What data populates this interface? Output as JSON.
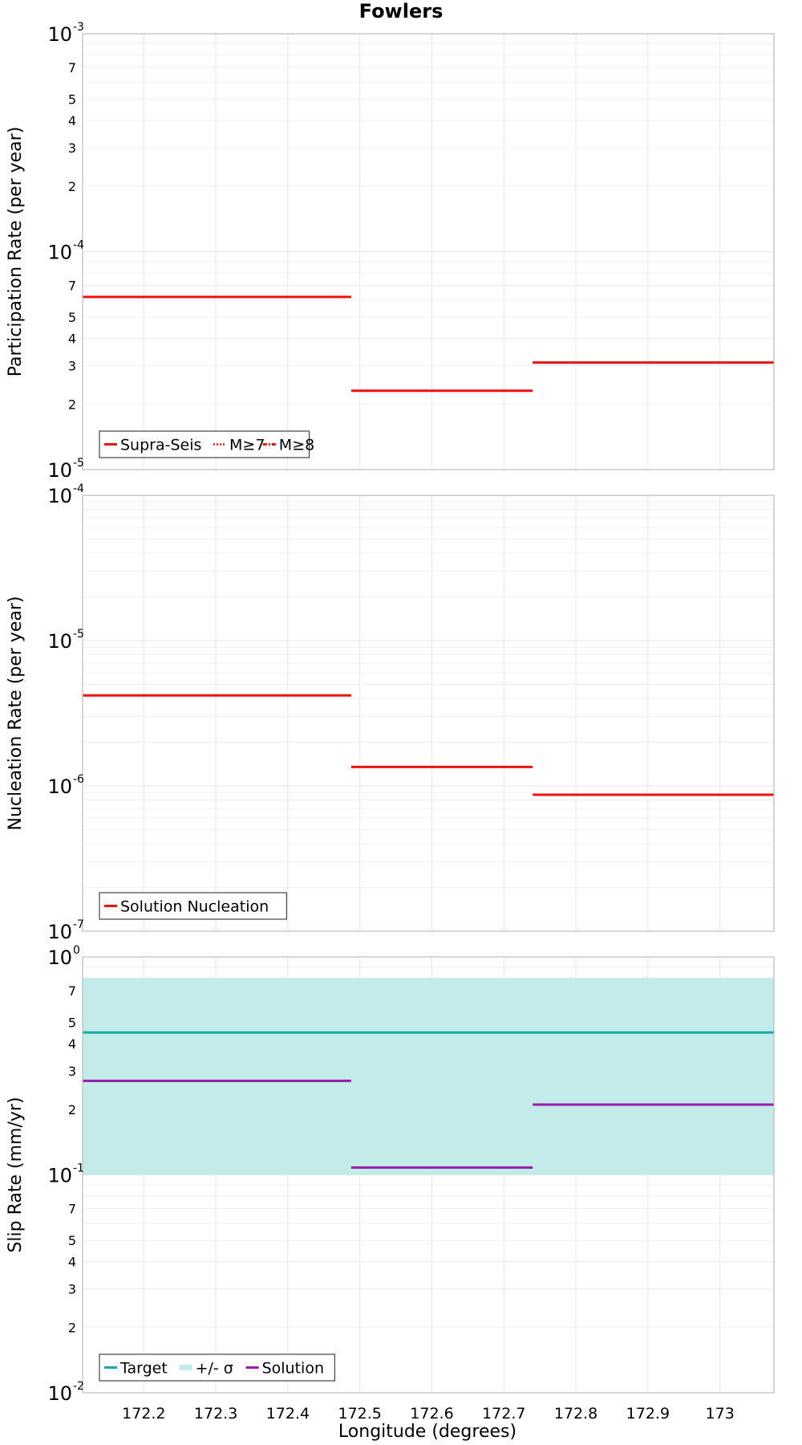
{
  "title": "Fowlers",
  "xlabel": "Longitude (degrees)",
  "x_ticks": [
    "172.2",
    "172.3",
    "172.4",
    "172.5",
    "172.6",
    "172.7",
    "172.8",
    "172.9",
    "173"
  ],
  "colors": {
    "solution_red": "#ee1111",
    "target": "#1aa8a8",
    "sigma_band": "#c2ebe9",
    "solution_purple": "#9a1aaa",
    "grid": "#e6e6e6",
    "frame": "#bbbbbb"
  },
  "chart_data": [
    {
      "type": "line",
      "panel": "participation",
      "ylabel": "Participation Rate (per year)",
      "yscale": "log",
      "ylim": [
        1e-05,
        0.001
      ],
      "xlim": [
        172.115,
        173.075
      ],
      "grid": true,
      "legend_position": "bottom-left",
      "y_major_ticks": [
        {
          "base": "10",
          "exp": "-5"
        },
        {
          "base": "10",
          "exp": "-4"
        },
        {
          "base": "10",
          "exp": "-3"
        }
      ],
      "y_minor_ticks": [
        "2",
        "3",
        "4",
        "5",
        "7"
      ],
      "series": [
        {
          "name": "Supra-Seis",
          "style": "solid",
          "segments": [
            [
              172.115,
              172.488,
              6.2e-05
            ],
            [
              172.488,
              172.74,
              2.3e-05
            ],
            [
              172.74,
              173.075,
              3.1e-05
            ]
          ]
        },
        {
          "name": "M≥7",
          "style": "dotted",
          "segments": [
            [
              172.488,
              172.74,
              2.3e-05
            ],
            [
              172.74,
              173.075,
              3.1e-05
            ]
          ]
        },
        {
          "name": "M≥8",
          "style": "dashdot",
          "segments": []
        }
      ]
    },
    {
      "type": "line",
      "panel": "nucleation",
      "ylabel": "Nucleation Rate (per year)",
      "yscale": "log",
      "ylim": [
        1e-07,
        0.0001
      ],
      "xlim": [
        172.115,
        173.075
      ],
      "grid": true,
      "legend_position": "bottom-left",
      "y_major_ticks": [
        {
          "base": "10",
          "exp": "-7"
        },
        {
          "base": "10",
          "exp": "-6"
        },
        {
          "base": "10",
          "exp": "-5"
        },
        {
          "base": "10",
          "exp": "-4"
        }
      ],
      "y_minor_ticks": [],
      "series": [
        {
          "name": "Solution Nucleation",
          "style": "solid",
          "segments": [
            [
              172.115,
              172.488,
              4.2e-06
            ],
            [
              172.488,
              172.74,
              1.35e-06
            ],
            [
              172.74,
              173.075,
              8.7e-07
            ]
          ]
        }
      ]
    },
    {
      "type": "line",
      "panel": "slip",
      "ylabel": "Slip Rate (mm/yr)",
      "yscale": "log",
      "ylim": [
        0.01,
        1
      ],
      "xlim": [
        172.115,
        173.075
      ],
      "grid": true,
      "legend_position": "bottom-left",
      "y_major_ticks": [
        {
          "base": "10",
          "exp": "-2"
        },
        {
          "base": "10",
          "exp": "-1"
        },
        {
          "base": "10",
          "exp": "0"
        }
      ],
      "y_minor_ticks": [
        "2",
        "3",
        "4",
        "5",
        "7"
      ],
      "series": [
        {
          "name": "Target",
          "style": "solid",
          "segments": [
            [
              172.115,
              173.075,
              0.45
            ]
          ]
        },
        {
          "name": "+/- σ",
          "style": "band",
          "band": [
            172.115,
            173.075,
            0.1,
            0.8
          ]
        },
        {
          "name": "Solution",
          "style": "solid",
          "segments": [
            [
              172.115,
              172.488,
              0.27
            ],
            [
              172.488,
              172.74,
              0.108
            ],
            [
              172.74,
              173.075,
              0.21
            ]
          ]
        }
      ]
    }
  ]
}
